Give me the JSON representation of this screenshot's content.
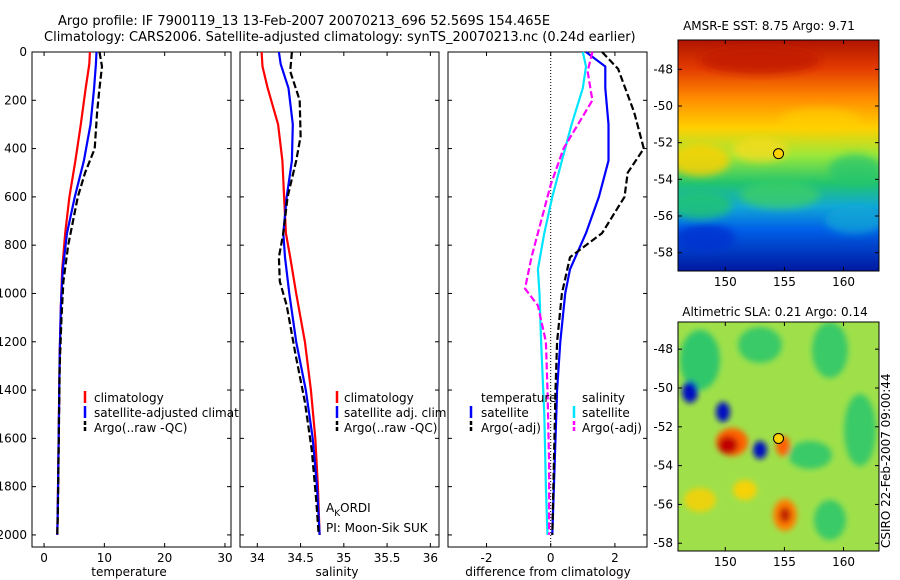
{
  "header": {
    "line1": "Argo profile: IF 7900119_13 13-Feb-2007 20070213_696 52.569S 154.465E",
    "line2": "Climatology: CARS2006. Satellite-adjusted climatology: synTS_20070213.nc (0.24d earlier)"
  },
  "credit": "CSIRO 22-Feb-2007 09:00:44",
  "colors": {
    "climatology": "#ff0000",
    "satellite": "#0000ff",
    "argo": "#000000",
    "argo_adj": "#ff00ff",
    "sat_salinity": "#00e5ff"
  },
  "chart_data": [
    {
      "id": "temperature-profile",
      "type": "line",
      "xlabel": "temperature",
      "ylabel": "",
      "xlim": [
        -2,
        31
      ],
      "ylim": [
        2050,
        0
      ],
      "xticks": [
        "0",
        "10",
        "20",
        "30"
      ],
      "xtick_values": [
        0,
        10,
        20,
        30
      ],
      "yticks": [
        "0",
        "200",
        "400",
        "600",
        "800",
        "1000",
        "1200",
        "1400",
        "1600",
        "1800",
        "2000"
      ],
      "ytick_values": [
        0,
        200,
        400,
        600,
        800,
        1000,
        1200,
        1400,
        1600,
        1800,
        2000
      ],
      "legend": [
        "climatology",
        "satellite-adjusted climatology",
        "Argo(..raw -QC)"
      ],
      "legend_position": "lower-right",
      "series": [
        {
          "name": "climatology",
          "color": "#ff0000",
          "dash": "solid",
          "x": [
            7.6,
            7.5,
            6.9,
            6.1,
            5.2,
            4.2,
            3.5,
            3.0,
            2.8,
            2.6,
            2.5,
            2.4,
            2.3,
            2.2
          ],
          "y": [
            0,
            50,
            150,
            300,
            450,
            600,
            750,
            900,
            1050,
            1250,
            1450,
            1650,
            1850,
            2000
          ]
        },
        {
          "name": "satellite-adjusted climatology",
          "color": "#0000ff",
          "dash": "solid",
          "x": [
            8.7,
            8.6,
            8.3,
            7.7,
            6.6,
            5.1,
            3.8,
            3.1,
            2.8,
            2.6,
            2.5,
            2.4,
            2.3,
            2.2
          ],
          "y": [
            0,
            50,
            150,
            300,
            450,
            600,
            750,
            900,
            1050,
            1250,
            1450,
            1650,
            1850,
            2000
          ]
        },
        {
          "name": "Argo(..raw -QC)",
          "color": "#000000",
          "dash": "dash",
          "x": [
            9.2,
            9.6,
            9.2,
            8.8,
            8.4,
            6.8,
            5.6,
            4.0,
            3.2,
            2.9,
            2.6,
            2.5,
            2.4,
            2.3,
            2.2
          ],
          "y": [
            0,
            60,
            150,
            250,
            400,
            500,
            600,
            800,
            950,
            1100,
            1300,
            1500,
            1700,
            1900,
            2000
          ]
        }
      ]
    },
    {
      "id": "salinity-profile",
      "type": "line",
      "xlabel": "salinity",
      "ylabel": "",
      "xlim": [
        33.8,
        36.1
      ],
      "ylim": [
        2050,
        0
      ],
      "xticks": [
        "34",
        "34.5",
        "35",
        "35.5",
        "36"
      ],
      "xtick_values": [
        34,
        34.5,
        35,
        35.5,
        36
      ],
      "legend": [
        "climatology",
        "satellite adj. clim.",
        "Argo(..raw -QC)"
      ],
      "legend_position": "lower-right",
      "annotations": {
        "ak": "A",
        "ak_sub": "K",
        "ak_rest": "ORDI",
        "pi": "PI: Moon-Sik SUK"
      },
      "series": [
        {
          "name": "climatology",
          "color": "#ff0000",
          "dash": "solid",
          "x": [
            34.05,
            34.06,
            34.12,
            34.24,
            34.29,
            34.31,
            34.33,
            34.38,
            34.45,
            34.55,
            34.62,
            34.67,
            34.7,
            34.72
          ],
          "y": [
            0,
            60,
            150,
            300,
            450,
            600,
            750,
            850,
            1000,
            1200,
            1400,
            1600,
            1800,
            2000
          ]
        },
        {
          "name": "satellite adj. clim.",
          "color": "#0000ff",
          "dash": "solid",
          "x": [
            34.25,
            34.27,
            34.36,
            34.41,
            34.4,
            34.34,
            34.3,
            34.32,
            34.37,
            34.45,
            34.56,
            34.64,
            34.69,
            34.72
          ],
          "y": [
            0,
            50,
            150,
            300,
            450,
            600,
            750,
            850,
            1000,
            1200,
            1400,
            1600,
            1800,
            2000
          ]
        },
        {
          "name": "Argo(..raw -QC)",
          "color": "#000000",
          "dash": "dash",
          "x": [
            34.4,
            34.38,
            34.49,
            34.5,
            34.45,
            34.35,
            34.3,
            34.25,
            34.26,
            34.34,
            34.44,
            34.55,
            34.63,
            34.68,
            34.71
          ],
          "y": [
            0,
            80,
            200,
            350,
            450,
            600,
            750,
            850,
            950,
            1050,
            1250,
            1450,
            1650,
            1850,
            2000
          ]
        }
      ]
    },
    {
      "id": "difference-profile",
      "type": "line",
      "xlabel": "difference from climatology",
      "ylabel": "",
      "xlim": [
        -3.2,
        3.0
      ],
      "ylim": [
        2050,
        0
      ],
      "xticks": [
        "-2",
        "0",
        "2"
      ],
      "xtick_values": [
        -2,
        0,
        2
      ],
      "reference_line": 0,
      "legend_groups": [
        {
          "heading": "temperature",
          "items": [
            "satellite",
            "Argo(-adj)"
          ]
        },
        {
          "heading": "salinity",
          "items": [
            "satellite",
            "Argo(-adj)"
          ]
        }
      ],
      "series": [
        {
          "name": "temperature satellite",
          "color": "#0000ff",
          "dash": "solid",
          "x": [
            1.1,
            1.7,
            1.7,
            1.8,
            1.8,
            1.5,
            1.1,
            0.6,
            0.45,
            0.3,
            0.2,
            0.15,
            0.1,
            0.05
          ],
          "y": [
            0,
            60,
            150,
            300,
            450,
            600,
            750,
            900,
            1000,
            1200,
            1400,
            1600,
            1800,
            2000
          ]
        },
        {
          "name": "temperature Argo(-adj)",
          "color": "#000000",
          "dash": "dash",
          "x": [
            1.6,
            2.1,
            2.6,
            2.9,
            2.4,
            2.3,
            1.6,
            0.6,
            0.35,
            0.2,
            0.15,
            0.1,
            0.05
          ],
          "y": [
            0,
            70,
            250,
            400,
            500,
            600,
            750,
            850,
            1000,
            1200,
            1400,
            1700,
            2000
          ]
        },
        {
          "name": "salinity satellite",
          "color": "#00e5ff",
          "dash": "solid",
          "x": [
            1.0,
            1.1,
            1.0,
            0.65,
            0.35,
            0.05,
            -0.2,
            -0.4,
            -0.35,
            -0.3,
            -0.2,
            -0.15,
            -0.1
          ],
          "y": [
            0,
            60,
            150,
            300,
            450,
            600,
            750,
            900,
            1000,
            1200,
            1500,
            1800,
            2000
          ]
        },
        {
          "name": "salinity Argo(-adj)",
          "color": "#ff00ff",
          "dash": "dash",
          "x": [
            1.3,
            1.15,
            1.3,
            0.4,
            0.0,
            -0.3,
            -0.6,
            -0.8,
            -0.4,
            -0.15,
            -0.1,
            -0.05,
            -0.05
          ],
          "y": [
            0,
            80,
            200,
            400,
            550,
            700,
            850,
            980,
            1050,
            1200,
            1400,
            1700,
            2000
          ]
        }
      ]
    },
    {
      "id": "sst-map",
      "type": "heatmap",
      "title": "AMSR-E SST: 8.75 Argo: 9.71",
      "xlim": [
        146,
        163
      ],
      "ylim": [
        -59,
        -46.4
      ],
      "xticks": [
        "150",
        "155",
        "160"
      ],
      "xtick_values": [
        150,
        155,
        160
      ],
      "yticks": [
        "-48",
        "-50",
        "-52",
        "-54",
        "-56",
        "-58"
      ],
      "ytick_values": [
        -48,
        -50,
        -52,
        -54,
        -56,
        -58
      ],
      "marker": {
        "lon": 154.5,
        "lat": -52.6
      }
    },
    {
      "id": "sla-map",
      "type": "heatmap",
      "title": "Altimetric SLA: 0.21 Argo: 0.14",
      "xlim": [
        146,
        163
      ],
      "ylim": [
        -58.4,
        -46.6
      ],
      "xticks": [
        "150",
        "155",
        "160"
      ],
      "xtick_values": [
        150,
        155,
        160
      ],
      "yticks": [
        "-48",
        "-50",
        "-52",
        "-54",
        "-56",
        "-58"
      ],
      "ytick_values": [
        -48,
        -50,
        -52,
        -54,
        -56,
        -58
      ],
      "marker": {
        "lon": 154.5,
        "lat": -52.6
      }
    }
  ]
}
